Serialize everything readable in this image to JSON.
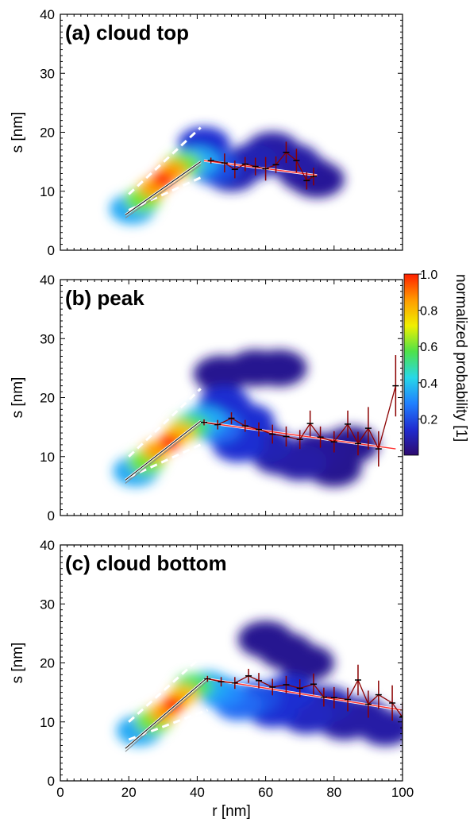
{
  "chart_data": [
    {
      "type": "heatmap",
      "panel_label": "(a) cloud top",
      "xlabel": "",
      "ylabel": "s [nm]",
      "xlim": [
        0,
        100
      ],
      "ylim": [
        0,
        40
      ],
      "x_ticks": [
        0,
        20,
        40,
        60,
        80,
        100
      ],
      "x_tick_labels": [
        "",
        "",
        "",
        "",
        "",
        ""
      ],
      "y_ticks": [
        0,
        10,
        20,
        30,
        40
      ],
      "y_tick_labels": [
        "0",
        "10",
        "20",
        "30",
        "40"
      ],
      "density_blobs": [
        {
          "x": 30,
          "y": 12,
          "p": 1.0
        },
        {
          "x": 27,
          "y": 10.5,
          "p": 0.85
        },
        {
          "x": 33,
          "y": 13.5,
          "p": 0.85
        },
        {
          "x": 24,
          "y": 8.5,
          "p": 0.6
        },
        {
          "x": 36,
          "y": 14.5,
          "p": 0.6
        },
        {
          "x": 21,
          "y": 7,
          "p": 0.35
        },
        {
          "x": 40,
          "y": 15,
          "p": 0.35
        },
        {
          "x": 45,
          "y": 14,
          "p": 0.2
        },
        {
          "x": 42,
          "y": 18,
          "p": 0.15
        },
        {
          "x": 50,
          "y": 13,
          "p": 0.1
        },
        {
          "x": 56,
          "y": 15,
          "p": 0.1
        },
        {
          "x": 62,
          "y": 17,
          "p": 0.08
        },
        {
          "x": 68,
          "y": 15,
          "p": 0.08
        },
        {
          "x": 72,
          "y": 13,
          "p": 0.06
        },
        {
          "x": 75,
          "y": 12,
          "p": 0.06
        }
      ],
      "fit_line_low": {
        "x": [
          19,
          41
        ],
        "y": [
          6,
          15
        ]
      },
      "fit_line_high": {
        "x": [
          42,
          75
        ],
        "y": [
          15.2,
          12.7
        ]
      },
      "envelope_upper": {
        "x": [
          20,
          41
        ],
        "y": [
          9.5,
          20.8
        ]
      },
      "envelope_lower": {
        "x": [
          20,
          41
        ],
        "y": [
          6.8,
          12.3
        ]
      },
      "binned_means": {
        "x": [
          44,
          48,
          51,
          54,
          57,
          60,
          63,
          66,
          69,
          72,
          74
        ],
        "y": [
          15.2,
          14.8,
          13.7,
          14.6,
          14.2,
          13.8,
          14.5,
          16.6,
          15.2,
          11.8,
          12.5
        ],
        "err": [
          0.5,
          1.6,
          1.5,
          1.2,
          1.5,
          2.0,
          1.4,
          1.8,
          2.0,
          1.5,
          1.5
        ]
      }
    },
    {
      "type": "heatmap",
      "panel_label": "(b) peak",
      "xlabel": "",
      "ylabel": "s [nm]",
      "xlim": [
        0,
        100
      ],
      "ylim": [
        0,
        40
      ],
      "x_ticks": [
        0,
        20,
        40,
        60,
        80,
        100
      ],
      "x_tick_labels": [
        "",
        "",
        "",
        "",
        "",
        ""
      ],
      "y_ticks": [
        0,
        10,
        20,
        30,
        40
      ],
      "y_tick_labels": [
        "0",
        "10",
        "20",
        "30",
        "40"
      ],
      "density_blobs": [
        {
          "x": 32,
          "y": 12.5,
          "p": 1.0
        },
        {
          "x": 28,
          "y": 11,
          "p": 0.85
        },
        {
          "x": 35,
          "y": 14,
          "p": 0.8
        },
        {
          "x": 25,
          "y": 9,
          "p": 0.6
        },
        {
          "x": 38,
          "y": 15,
          "p": 0.55
        },
        {
          "x": 22,
          "y": 7.5,
          "p": 0.35
        },
        {
          "x": 42,
          "y": 16,
          "p": 0.35
        },
        {
          "x": 46,
          "y": 15,
          "p": 0.25
        },
        {
          "x": 48,
          "y": 19,
          "p": 0.15
        },
        {
          "x": 52,
          "y": 12,
          "p": 0.15
        },
        {
          "x": 55,
          "y": 16,
          "p": 0.15
        },
        {
          "x": 60,
          "y": 12,
          "p": 0.1
        },
        {
          "x": 64,
          "y": 10,
          "p": 0.08
        },
        {
          "x": 70,
          "y": 9,
          "p": 0.08
        },
        {
          "x": 75,
          "y": 11,
          "p": 0.06
        },
        {
          "x": 80,
          "y": 8,
          "p": 0.05
        },
        {
          "x": 85,
          "y": 12,
          "p": 0.05
        },
        {
          "x": 57,
          "y": 25,
          "p": 0.05
        },
        {
          "x": 64,
          "y": 25,
          "p": 0.05
        },
        {
          "x": 47,
          "y": 24,
          "p": 0.05
        }
      ],
      "fit_line_low": {
        "x": [
          19,
          41
        ],
        "y": [
          6,
          16
        ]
      },
      "fit_line_high": {
        "x": [
          42,
          98
        ],
        "y": [
          15.8,
          11.3
        ]
      },
      "envelope_upper": {
        "x": [
          20,
          41
        ],
        "y": [
          10,
          21.5
        ]
      },
      "envelope_lower": {
        "x": [
          20,
          41
        ],
        "y": [
          6.5,
          12
        ]
      },
      "binned_means": {
        "x": [
          42,
          46,
          50,
          54,
          58,
          62,
          66,
          70,
          73,
          76,
          80,
          84,
          87,
          90,
          93,
          98
        ],
        "y": [
          15.8,
          15.4,
          16.5,
          15.2,
          14.6,
          13.8,
          13.4,
          12.9,
          15.6,
          13.3,
          12.5,
          15.5,
          12.2,
          14.8,
          11.3,
          22
        ],
        "err": [
          0.5,
          0.8,
          1.0,
          1.0,
          1.2,
          1.6,
          1.7,
          1.6,
          2.2,
          1.8,
          1.8,
          2.3,
          2.0,
          3.6,
          3.0,
          5.2
        ]
      }
    },
    {
      "type": "heatmap",
      "panel_label": "(c) cloud bottom",
      "xlabel": "r [nm]",
      "ylabel": "s [nm]",
      "xlim": [
        0,
        100
      ],
      "ylim": [
        0,
        40
      ],
      "x_ticks": [
        0,
        20,
        40,
        60,
        80,
        100
      ],
      "x_tick_labels": [
        "0",
        "20",
        "40",
        "60",
        "80",
        "100"
      ],
      "y_ticks": [
        0,
        10,
        20,
        30,
        40
      ],
      "y_tick_labels": [
        "0",
        "10",
        "20",
        "30",
        "40"
      ],
      "density_blobs": [
        {
          "x": 33,
          "y": 13,
          "p": 1.0
        },
        {
          "x": 30,
          "y": 11.5,
          "p": 0.85
        },
        {
          "x": 36,
          "y": 14.5,
          "p": 0.8
        },
        {
          "x": 27,
          "y": 10,
          "p": 0.6
        },
        {
          "x": 39,
          "y": 16,
          "p": 0.55
        },
        {
          "x": 23,
          "y": 8.5,
          "p": 0.35
        },
        {
          "x": 43,
          "y": 16,
          "p": 0.35
        },
        {
          "x": 47,
          "y": 15,
          "p": 0.3
        },
        {
          "x": 52,
          "y": 13,
          "p": 0.25
        },
        {
          "x": 57,
          "y": 14,
          "p": 0.2
        },
        {
          "x": 62,
          "y": 12,
          "p": 0.15
        },
        {
          "x": 67,
          "y": 15,
          "p": 0.15
        },
        {
          "x": 72,
          "y": 11,
          "p": 0.12
        },
        {
          "x": 78,
          "y": 13,
          "p": 0.1
        },
        {
          "x": 83,
          "y": 10,
          "p": 0.08
        },
        {
          "x": 88,
          "y": 11,
          "p": 0.08
        },
        {
          "x": 95,
          "y": 9,
          "p": 0.08
        },
        {
          "x": 60,
          "y": 24,
          "p": 0.05
        },
        {
          "x": 66,
          "y": 22,
          "p": 0.05
        },
        {
          "x": 72,
          "y": 20,
          "p": 0.05
        }
      ],
      "fit_line_low": {
        "x": [
          19,
          43
        ],
        "y": [
          5.5,
          17.5
        ]
      },
      "fit_line_high": {
        "x": [
          43,
          100
        ],
        "y": [
          17.3,
          12
        ]
      },
      "envelope_upper": {
        "x": [
          20,
          43
        ],
        "y": [
          10,
          22
        ]
      },
      "envelope_lower": {
        "x": [
          20,
          43
        ],
        "y": [
          7,
          12
        ]
      },
      "binned_means": {
        "x": [
          43,
          47,
          51,
          55,
          58,
          62,
          66,
          70,
          74,
          77,
          80,
          84,
          87,
          90,
          93,
          97,
          100
        ],
        "y": [
          17.3,
          16.8,
          16.6,
          17.8,
          17.0,
          15.9,
          16.3,
          15.7,
          16.4,
          14.2,
          14.1,
          13.8,
          17.1,
          13.0,
          14.6,
          13.2,
          10.8
        ],
        "err": [
          0.5,
          0.8,
          1.0,
          1.2,
          1.3,
          1.4,
          1.5,
          1.5,
          1.8,
          1.6,
          1.8,
          2.0,
          2.6,
          2.3,
          2.4,
          3.0,
          2.5
        ]
      }
    }
  ],
  "colorbar": {
    "label": "normalized probability [1]",
    "range": [
      0,
      1.0
    ],
    "ticks": [
      0.2,
      0.4,
      0.6,
      0.8,
      1.0
    ],
    "tick_labels": [
      "0.2",
      "0.4",
      "0.6",
      "0.8",
      "1.0"
    ],
    "colormap": [
      "#2d0a6e",
      "#1f2bd0",
      "#2080ff",
      "#27d8e8",
      "#4ee24a",
      "#f0f000",
      "#ff9b00",
      "#ff2000"
    ]
  },
  "style": {
    "fit_color": "#ff3030",
    "mean_marker_color": "#000000",
    "errorbar_color": "#8b0000",
    "envelope_color": "#ffffff"
  }
}
